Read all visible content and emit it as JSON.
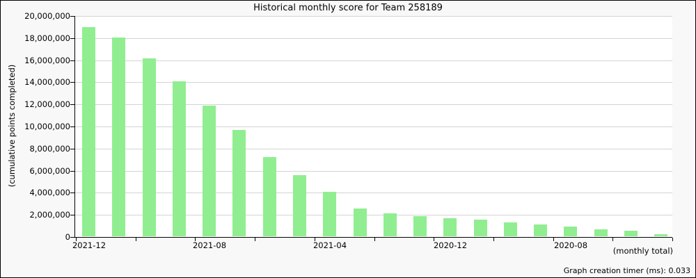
{
  "title": "Historical monthly score for Team 258189",
  "y_axis_title": "(cumulative points completed)",
  "x_axis_note": "(monthly total)",
  "footer_timer": "Graph creation timer (ms): 0.033",
  "colors": {
    "bar": "#90ee90",
    "background": "#f8f8f8",
    "plot_background": "#ffffff",
    "gridline": "#d3d3d3",
    "axis": "#000000"
  },
  "chart_data": {
    "type": "bar",
    "title": "Historical monthly score for Team 258189",
    "ylabel": "(cumulative points completed)",
    "xlabel": "(monthly total)",
    "ylim": [
      0,
      20000000
    ],
    "grid": true,
    "legend": "none",
    "y_tick_step": 2000000,
    "y_tick_labels": [
      "20,000,000",
      "18,000,000",
      "16,000,000",
      "14,000,000",
      "12,000,000",
      "10,000,000",
      "8,000,000",
      "6,000,000",
      "4,000,000",
      "2,000,000",
      "0"
    ],
    "x_tick_labels": [
      "2021-12",
      "2021-08",
      "2021-04",
      "2020-12",
      "2020-08"
    ],
    "categories": [
      "2021-12",
      "2021-11",
      "2021-10",
      "2021-09",
      "2021-08",
      "2021-07",
      "2021-06",
      "2021-05",
      "2021-04",
      "2021-03",
      "2021-02",
      "2021-01",
      "2020-12",
      "2020-11",
      "2020-10",
      "2020-09",
      "2020-08",
      "2020-07",
      "2020-06",
      "2020-05"
    ],
    "values": [
      18900000,
      18000000,
      16100000,
      14050000,
      11800000,
      9600000,
      7200000,
      5550000,
      4000000,
      2500000,
      2100000,
      1850000,
      1650000,
      1500000,
      1250000,
      1100000,
      850000,
      650000,
      500000,
      200000
    ]
  }
}
